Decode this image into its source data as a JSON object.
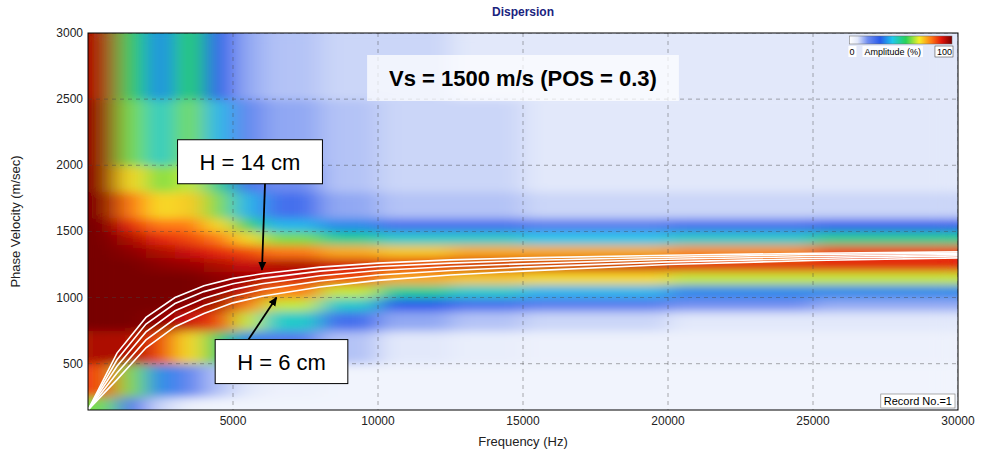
{
  "chart_data": {
    "type": "heatmap",
    "title": "Dispersion",
    "x_label": "Frequency (Hz)",
    "y_label": "Phase Velocity (m/sec)",
    "xlim": [
      0,
      30000
    ],
    "ylim": [
      150,
      3000
    ],
    "xticks": [
      5000,
      10000,
      15000,
      20000,
      25000,
      30000
    ],
    "yticks": [
      500,
      1000,
      1500,
      2000,
      2500,
      3000
    ],
    "grid": true,
    "x_bins": [
      0,
      1000,
      2000,
      3000,
      4000,
      5000,
      6000,
      8000,
      10000,
      12500,
      15000,
      20000,
      25000,
      30000
    ],
    "y_bins": [
      0,
      250,
      500,
      750,
      900,
      1000,
      1100,
      1200,
      1300,
      1400,
      1500,
      1600,
      1800,
      2000,
      2500,
      3000
    ],
    "cells": [
      [
        60,
        25,
        10,
        5,
        4,
        4,
        4,
        4,
        4,
        4,
        4,
        4,
        4
      ],
      [
        85,
        60,
        35,
        20,
        12,
        8,
        5,
        4,
        4,
        4,
        4,
        4,
        4
      ],
      [
        95,
        95,
        85,
        70,
        55,
        35,
        22,
        12,
        8,
        6,
        5,
        5,
        5
      ],
      [
        100,
        100,
        98,
        92,
        85,
        65,
        45,
        25,
        15,
        12,
        10,
        8,
        8
      ],
      [
        100,
        100,
        100,
        98,
        95,
        80,
        65,
        45,
        30,
        25,
        22,
        18,
        15
      ],
      [
        100,
        100,
        100,
        100,
        98,
        92,
        80,
        65,
        50,
        45,
        40,
        35,
        35
      ],
      [
        100,
        100,
        100,
        100,
        98,
        97,
        92,
        85,
        75,
        72,
        70,
        65,
        65
      ],
      [
        100,
        100,
        98,
        97,
        95,
        92,
        95,
        92,
        90,
        92,
        92,
        90,
        90
      ],
      [
        100,
        98,
        95,
        92,
        88,
        85,
        80,
        75,
        72,
        75,
        75,
        78,
        85
      ],
      [
        100,
        95,
        88,
        85,
        80,
        70,
        60,
        50,
        45,
        45,
        42,
        45,
        50
      ],
      [
        100,
        88,
        80,
        80,
        70,
        55,
        40,
        35,
        25,
        25,
        22,
        25,
        28
      ],
      [
        99,
        80,
        70,
        72,
        60,
        40,
        25,
        15,
        12,
        12,
        10,
        10,
        10
      ],
      [
        98,
        70,
        60,
        65,
        50,
        25,
        18,
        12,
        10,
        10,
        8,
        8,
        8
      ],
      [
        97,
        60,
        45,
        60,
        40,
        20,
        15,
        12,
        10,
        10,
        8,
        8,
        8
      ],
      [
        95,
        55,
        35,
        55,
        30,
        15,
        12,
        10,
        10,
        8,
        8,
        8,
        8
      ]
    ],
    "colorbar": {
      "label": "Amplitude (%)",
      "range": [
        0,
        100
      ],
      "ticks": [
        0,
        100
      ]
    },
    "x": [
      0,
      1000,
      2000,
      3000,
      4000,
      5000,
      6000,
      8000,
      10000,
      12500,
      15000,
      20000,
      25000,
      30000
    ],
    "series": [
      {
        "type": "line",
        "color": "#ffffff",
        "values": [
          150,
          380,
          620,
          780,
          880,
          960,
          1010,
          1080,
          1130,
          1170,
          1200,
          1250,
          1280,
          1300
        ]
      },
      {
        "type": "line",
        "color": "#ffffff",
        "values": [
          150,
          430,
          680,
          840,
          940,
          1010,
          1060,
          1125,
          1170,
          1205,
          1230,
          1270,
          1295,
          1315
        ]
      },
      {
        "type": "line",
        "color": "#ffffff",
        "values": [
          150,
          480,
          740,
          900,
          995,
          1060,
          1105,
          1165,
          1205,
          1235,
          1255,
          1290,
          1310,
          1325
        ]
      },
      {
        "type": "line",
        "color": "#ffffff",
        "values": [
          150,
          530,
          800,
          955,
          1045,
          1105,
          1145,
          1200,
          1235,
          1260,
          1280,
          1305,
          1325,
          1335
        ]
      },
      {
        "type": "line",
        "color": "#ffffff",
        "values": [
          150,
          580,
          850,
          1000,
          1090,
          1145,
          1180,
          1230,
          1260,
          1285,
          1300,
          1320,
          1335,
          1345
        ]
      }
    ],
    "annotations": [
      {
        "text": "Vs = 1500 m/s (POS = 0.3)"
      },
      {
        "text": "H = 14 cm",
        "x": 6000,
        "y": 1180
      },
      {
        "text": "H = 6 cm",
        "x": 6500,
        "y": 1030
      },
      {
        "text": "Record No.=1"
      }
    ]
  }
}
